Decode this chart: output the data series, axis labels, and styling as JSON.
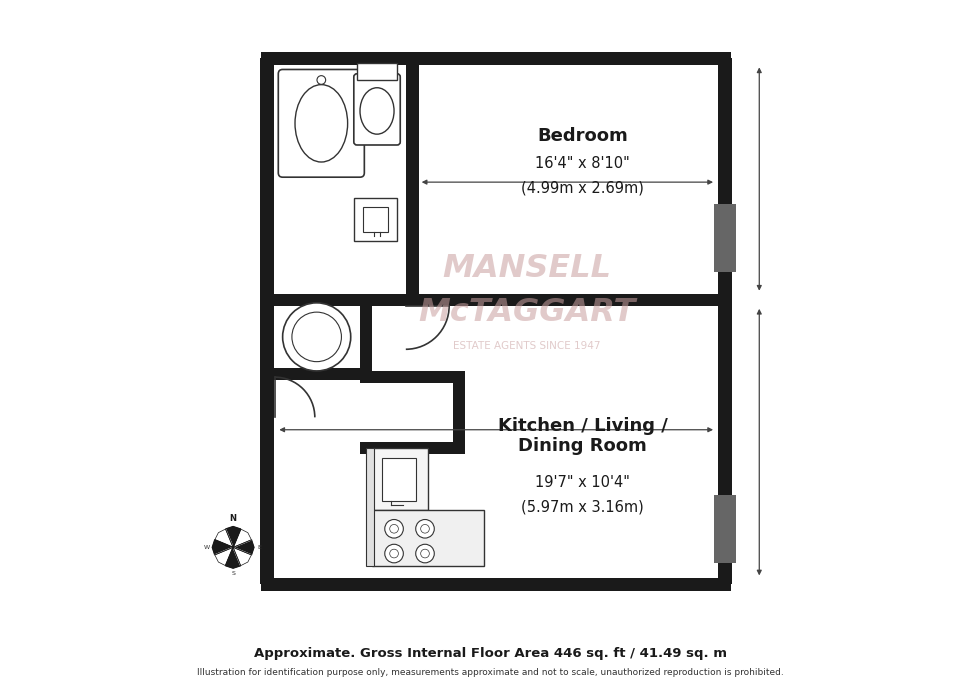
{
  "bg_color": "#ffffff",
  "wall_color": "#1a1a1a",
  "fixture_line_color": "#333333",
  "watermark_color": "#c9a0a0",
  "title_bedroom": "Bedroom",
  "dim_bedroom1": "16'4\" x 8'10\"",
  "dim_bedroom2": "(4.99m x 2.69m)",
  "title_kitchen": "Kitchen / Living /\nDining Room",
  "dim_kitchen1": "19'7\" x 10'4\"",
  "dim_kitchen2": "(5.97m x 3.16m)",
  "footer1": "Approximate. Gross Internal Floor Area 446 sq. ft / 41.49 sq. m",
  "footer2": "Illustration for identification purpose only, measurements approximate and not to scale, unauthorized reproduction is prohibited.",
  "watermark_line1": "MANSELL",
  "watermark_line2": "McTAGGART",
  "watermark_line3": "ESTATE AGENTS SINCE 1947"
}
